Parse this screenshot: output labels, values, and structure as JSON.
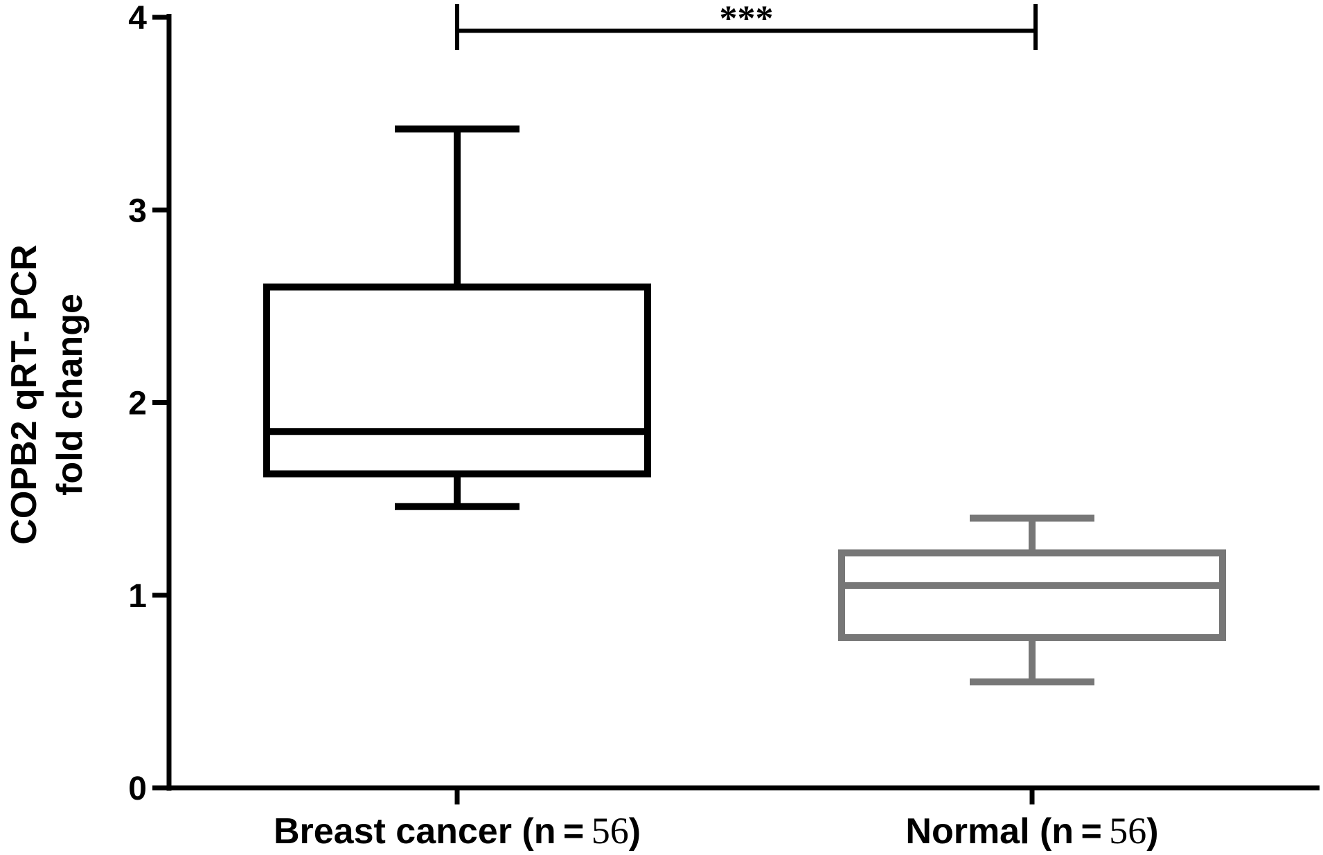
{
  "chart_data": {
    "type": "box",
    "ylabel_lines": [
      "COPB2 qRT- PCR",
      "fold change"
    ],
    "ylim": [
      0,
      4
    ],
    "y_ticks": [
      "0",
      "1",
      "2",
      "3",
      "4"
    ],
    "categories": [
      {
        "label_text": "Breast cancer (n = ",
        "label_num": "56",
        "label_end": ")"
      },
      {
        "label_text": "Normal (n = ",
        "label_num": "56",
        "label_end": ")"
      }
    ],
    "boxes": [
      {
        "category": "Breast cancer",
        "whisker_low": 1.46,
        "q1": 1.63,
        "median": 1.85,
        "q3": 2.6,
        "whisker_high": 3.42,
        "color": "#000000"
      },
      {
        "category": "Normal",
        "whisker_low": 0.55,
        "q1": 0.78,
        "median": 1.05,
        "q3": 1.22,
        "whisker_high": 1.4,
        "color": "#777777"
      }
    ],
    "significance": {
      "label": "***",
      "between": [
        "Breast cancer",
        "Normal"
      ],
      "y": 3.93
    }
  }
}
